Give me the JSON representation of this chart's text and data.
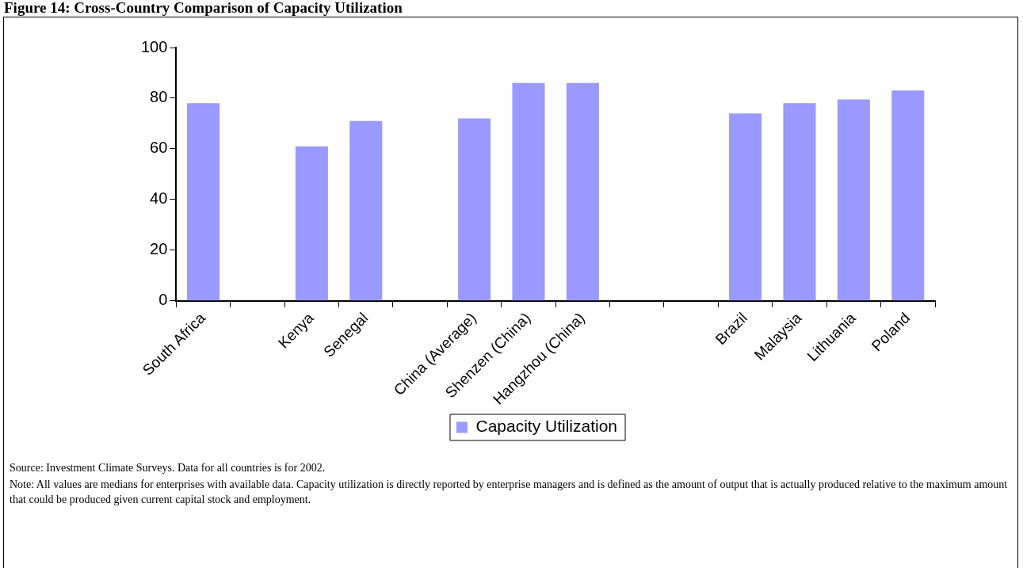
{
  "chart_data": {
    "type": "bar",
    "title": "Figure 14: Cross-Country Comparison of Capacity Utilization",
    "categories": [
      "South Africa",
      null,
      "Kenya",
      "Senegal",
      null,
      "China (Average)",
      "Shenzen (China)",
      "Hangzhou (China)",
      null,
      null,
      "Brazil",
      "Malaysia",
      "Lithuania",
      "Poland"
    ],
    "series": [
      {
        "name": "Capacity Utilization",
        "color": "#9999ff",
        "values": [
          78,
          null,
          61,
          71,
          null,
          72,
          86,
          86,
          null,
          null,
          74,
          78,
          79.5,
          83
        ]
      }
    ],
    "ylim": [
      0,
      100
    ],
    "yticks": [
      0,
      20,
      40,
      60,
      80,
      100
    ],
    "grid": false,
    "legend": "bottom",
    "annotations": [
      "Source: Investment Climate Surveys. Data for all countries is for 2002.",
      "Note: All values are medians for enterprises with available data. Capacity utilization is directly reported by enterprise managers and is defined as the amount of output that is actually produced relative to the maximum amount that could be produced given current capital stock and employment."
    ]
  }
}
